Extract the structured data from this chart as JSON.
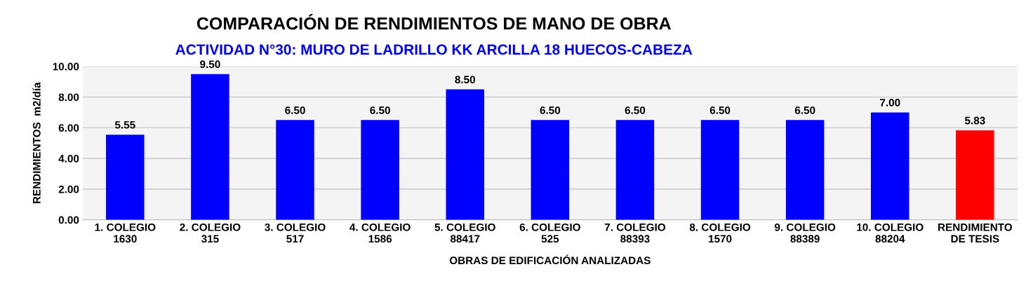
{
  "chart_data": {
    "type": "bar",
    "title": "COMPARACIÓN DE RENDIMIENTOS DE MANO DE OBRA",
    "subtitle": "ACTIVIDAD N°30: MURO DE LADRILLO KK ARCILLA 18 HUECOS-CABEZA",
    "xlabel": "OBRAS DE EDIFICACIÓN ANALIZADAS",
    "ylabel": "RENDIMIENTOS  m2/día",
    "categories": [
      "1. COLEGIO\n1630",
      "2. COLEGIO\n315",
      "3. COLEGIO\n517",
      "4. COLEGIO\n1586",
      "5. COLEGIO\n88417",
      "6. COLEGIO\n525",
      "7. COLEGIO\n88393",
      "8. COLEGIO\n1570",
      "9. COLEGIO\n88389",
      "10. COLEGIO\n88204",
      "RENDIMIENTO\nDE TESIS"
    ],
    "values": [
      5.55,
      9.5,
      6.5,
      6.5,
      8.5,
      6.5,
      6.5,
      6.5,
      6.5,
      7.0,
      5.83
    ],
    "value_labels": [
      "5.55",
      "9.50",
      "6.50",
      "6.50",
      "8.50",
      "6.50",
      "6.50",
      "6.50",
      "6.50",
      "7.00",
      "5.83"
    ],
    "colors": [
      "#0000ff",
      "#0000ff",
      "#0000ff",
      "#0000ff",
      "#0000ff",
      "#0000ff",
      "#0000ff",
      "#0000ff",
      "#0000ff",
      "#0000ff",
      "#ff0000"
    ],
    "ylim": [
      0,
      10
    ],
    "yticks": [
      {
        "value": 0,
        "label": "0.00"
      },
      {
        "value": 2,
        "label": "2.00"
      },
      {
        "value": 4,
        "label": "4.00"
      },
      {
        "value": 6,
        "label": "6.00"
      },
      {
        "value": 8,
        "label": "8.00"
      },
      {
        "value": 10,
        "label": "10.00"
      }
    ],
    "grid": "y"
  }
}
